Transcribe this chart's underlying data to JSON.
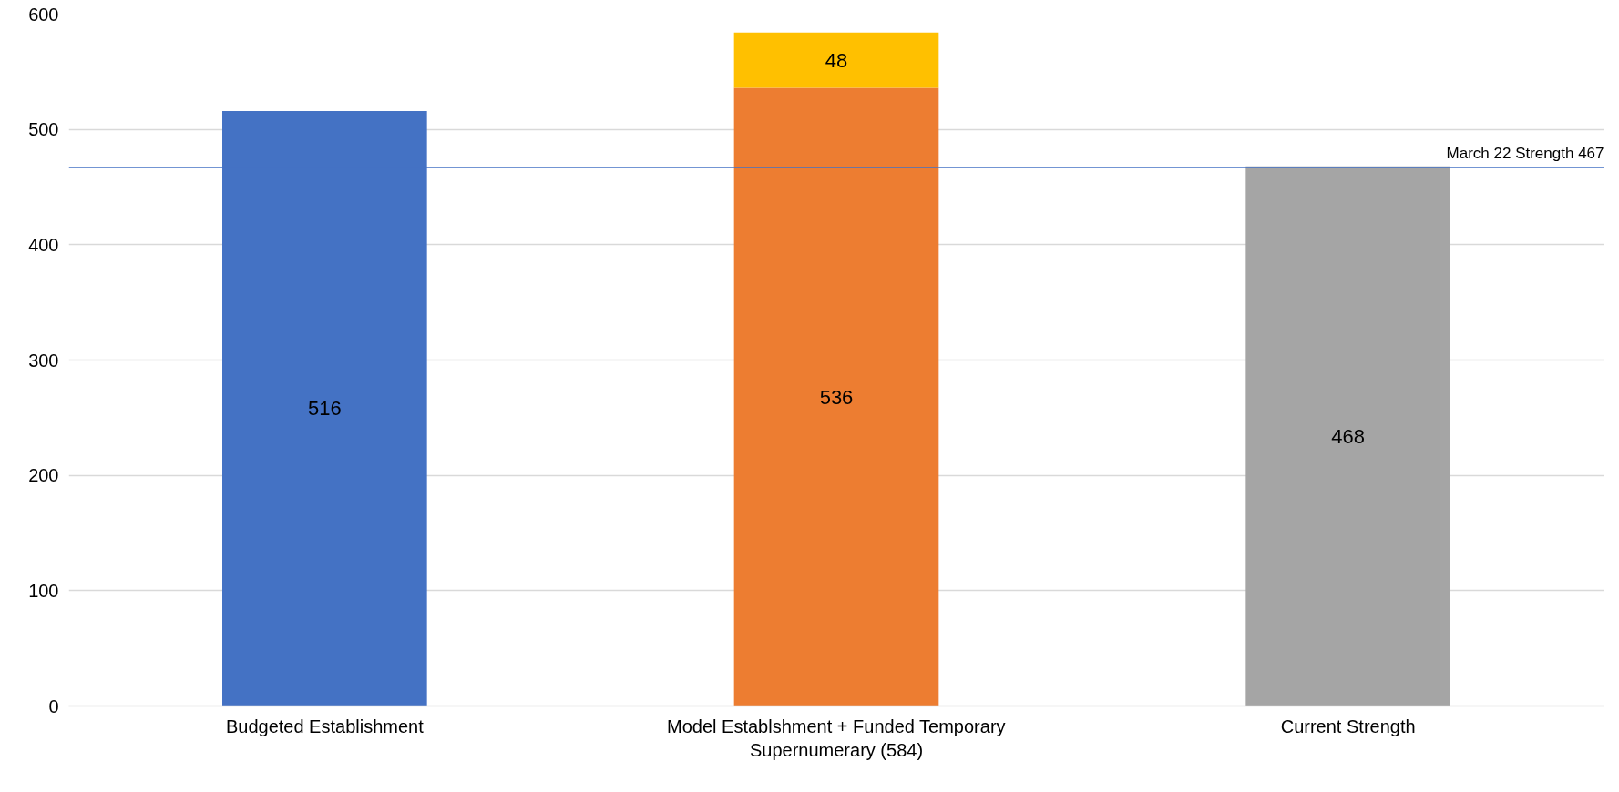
{
  "chart_data": {
    "type": "bar",
    "stacked": true,
    "categories": [
      "Budgeted Establishment",
      "Model Establshment + Funded Temporary Supernumerary (584)",
      "Current Strength"
    ],
    "series": [
      {
        "colors": [
          "#4472c4",
          "#ed7d31",
          "#a5a5a5"
        ],
        "values": [
          516,
          536,
          468
        ]
      },
      {
        "colors": [
          "#ffc000",
          "#ffc000",
          "#ffc000"
        ],
        "values": [
          null,
          48,
          null
        ]
      }
    ],
    "ylim": [
      0,
      600
    ],
    "yticks": [
      0,
      100,
      200,
      300,
      400,
      500,
      600
    ],
    "grid": "y",
    "data_labels": true,
    "ref_lines": [
      {
        "axis": "y",
        "value": 467,
        "label": "March 22 Strength 467",
        "color": "#4472c4"
      }
    ]
  }
}
